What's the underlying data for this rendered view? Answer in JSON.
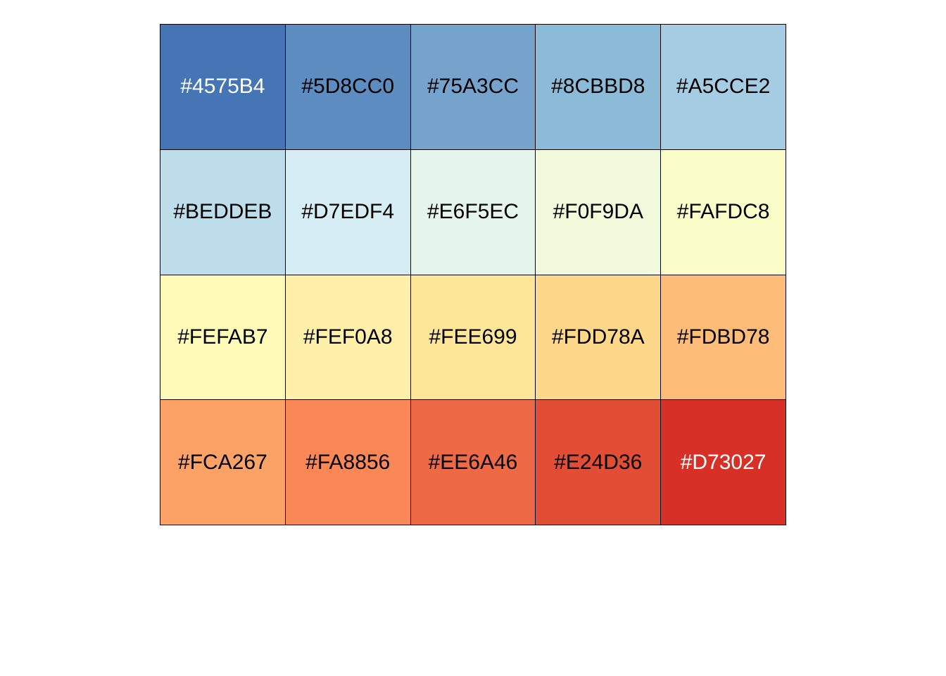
{
  "chart_data": {
    "type": "table",
    "rows": 4,
    "columns": 5,
    "swatches": [
      {
        "hex": "#4575B4",
        "label": "#4575B4",
        "text_color": "#FFFFFF"
      },
      {
        "hex": "#5D8CC0",
        "label": "#5D8CC0",
        "text_color": "#000000"
      },
      {
        "hex": "#75A3CC",
        "label": "#75A3CC",
        "text_color": "#000000"
      },
      {
        "hex": "#8CBBD8",
        "label": "#8CBBD8",
        "text_color": "#000000"
      },
      {
        "hex": "#A5CCE2",
        "label": "#A5CCE2",
        "text_color": "#000000"
      },
      {
        "hex": "#BEDDEB",
        "label": "#BEDDEB",
        "text_color": "#000000"
      },
      {
        "hex": "#D7EDF4",
        "label": "#D7EDF4",
        "text_color": "#000000"
      },
      {
        "hex": "#E6F5EC",
        "label": "#E6F5EC",
        "text_color": "#000000"
      },
      {
        "hex": "#F0F9DA",
        "label": "#F0F9DA",
        "text_color": "#000000"
      },
      {
        "hex": "#FAFDC8",
        "label": "#FAFDC8",
        "text_color": "#000000"
      },
      {
        "hex": "#FEFAB7",
        "label": "#FEFAB7",
        "text_color": "#000000"
      },
      {
        "hex": "#FEF0A8",
        "label": "#FEF0A8",
        "text_color": "#000000"
      },
      {
        "hex": "#FEE699",
        "label": "#FEE699",
        "text_color": "#000000"
      },
      {
        "hex": "#FDD78A",
        "label": "#FDD78A",
        "text_color": "#000000"
      },
      {
        "hex": "#FDBD78",
        "label": "#FDBD78",
        "text_color": "#000000"
      },
      {
        "hex": "#FCA267",
        "label": "#FCA267",
        "text_color": "#000000"
      },
      {
        "hex": "#FA8856",
        "label": "#FA8856",
        "text_color": "#000000"
      },
      {
        "hex": "#EE6A46",
        "label": "#EE6A46",
        "text_color": "#000000"
      },
      {
        "hex": "#E24D36",
        "label": "#E24D36",
        "text_color": "#000000"
      },
      {
        "hex": "#D73027",
        "label": "#D73027",
        "text_color": "#FFFFFF"
      }
    ]
  }
}
